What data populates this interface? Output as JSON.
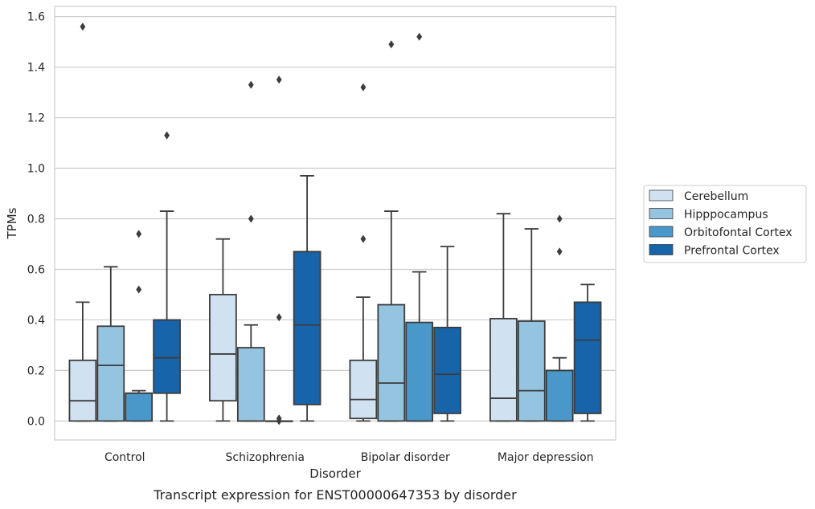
{
  "chart_data": {
    "type": "boxplot",
    "caption": "Transcript expression for ENST00000647353 by disorder",
    "xlabel": "Disorder",
    "ylabel": "TPMs",
    "ylim": [
      -0.075,
      1.64
    ],
    "yticks": [
      "0.0",
      "0.2",
      "0.4",
      "0.6",
      "0.8",
      "1.0",
      "1.2",
      "1.4",
      "1.6"
    ],
    "grid": "horizontal",
    "legend_position": "right",
    "categories": [
      "Control",
      "Schizophrenia",
      "Bipolar disorder",
      "Major depression"
    ],
    "series": [
      {
        "name": "Cerebellum",
        "color": "#d0e1f2",
        "boxes": [
          {
            "min": 0.0,
            "q1": 0.0,
            "median": 0.08,
            "q3": 0.24,
            "max": 0.47,
            "outliers": [
              1.56
            ]
          },
          {
            "min": 0.0,
            "q1": 0.08,
            "median": 0.265,
            "q3": 0.5,
            "max": 0.72,
            "outliers": []
          },
          {
            "min": 0.0,
            "q1": 0.01,
            "median": 0.085,
            "q3": 0.24,
            "max": 0.49,
            "outliers": [
              0.72,
              1.32
            ]
          },
          {
            "min": 0.0,
            "q1": 0.0,
            "median": 0.09,
            "q3": 0.405,
            "max": 0.82,
            "outliers": []
          }
        ]
      },
      {
        "name": "Hipppocampus",
        "color": "#94c4df",
        "boxes": [
          {
            "min": 0.0,
            "q1": 0.0,
            "median": 0.22,
            "q3": 0.375,
            "max": 0.61,
            "outliers": []
          },
          {
            "min": 0.0,
            "q1": 0.0,
            "median": 0.0,
            "q3": 0.29,
            "max": 0.38,
            "outliers": [
              0.8,
              1.33
            ]
          },
          {
            "min": 0.0,
            "q1": 0.0,
            "median": 0.15,
            "q3": 0.46,
            "max": 0.83,
            "outliers": [
              1.49
            ]
          },
          {
            "min": 0.0,
            "q1": 0.0,
            "median": 0.12,
            "q3": 0.395,
            "max": 0.76,
            "outliers": []
          }
        ]
      },
      {
        "name": "Orbitofontal Cortex",
        "color": "#4a98c9",
        "boxes": [
          {
            "min": 0.0,
            "q1": 0.0,
            "median": 0.11,
            "q3": 0.11,
            "max": 0.12,
            "outliers": [
              0.52,
              0.74
            ]
          },
          {
            "min": 0.0,
            "q1": 0.0,
            "median": 0.0,
            "q3": 0.0,
            "max": 0.0,
            "outliers": [
              0.0,
              0.01,
              0.41,
              1.35
            ]
          },
          {
            "min": 0.0,
            "q1": 0.0,
            "median": 0.0,
            "q3": 0.39,
            "max": 0.59,
            "outliers": [
              1.52
            ]
          },
          {
            "min": 0.0,
            "q1": 0.0,
            "median": 0.2,
            "q3": 0.2,
            "max": 0.25,
            "outliers": [
              0.67,
              0.8
            ]
          }
        ]
      },
      {
        "name": "Prefrontal Cortex",
        "color": "#1764ab",
        "boxes": [
          {
            "min": 0.0,
            "q1": 0.11,
            "median": 0.25,
            "q3": 0.4,
            "max": 0.83,
            "outliers": [
              1.13
            ]
          },
          {
            "min": 0.0,
            "q1": 0.065,
            "median": 0.38,
            "q3": 0.67,
            "max": 0.97,
            "outliers": []
          },
          {
            "min": 0.0,
            "q1": 0.03,
            "median": 0.185,
            "q3": 0.37,
            "max": 0.69,
            "outliers": []
          },
          {
            "min": 0.0,
            "q1": 0.03,
            "median": 0.32,
            "q3": 0.47,
            "max": 0.54,
            "outliers": []
          }
        ]
      }
    ]
  }
}
